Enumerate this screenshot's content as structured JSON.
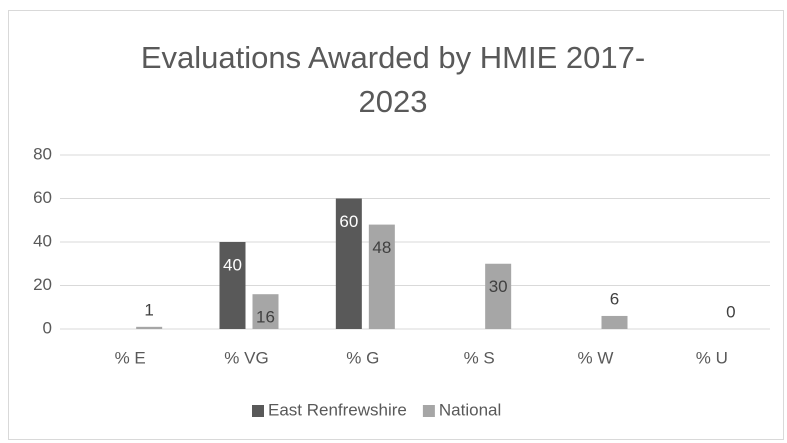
{
  "chart_data": {
    "type": "bar",
    "title": "Evaluations Awarded by HMIE 2017-2023",
    "categories": [
      "% E",
      "% VG",
      "% G",
      "% S",
      "% W",
      "% U"
    ],
    "series": [
      {
        "name": "East Renfrewshire",
        "color": "#595959",
        "values": [
          null,
          40,
          60,
          null,
          null,
          null
        ]
      },
      {
        "name": "National",
        "color": "#a6a6a6",
        "values": [
          1,
          16,
          48,
          30,
          6,
          0
        ]
      }
    ],
    "ylim": [
      0,
      80
    ],
    "yticks": [
      0,
      20,
      40,
      60,
      80
    ],
    "grid": true,
    "legend": "bottom"
  }
}
